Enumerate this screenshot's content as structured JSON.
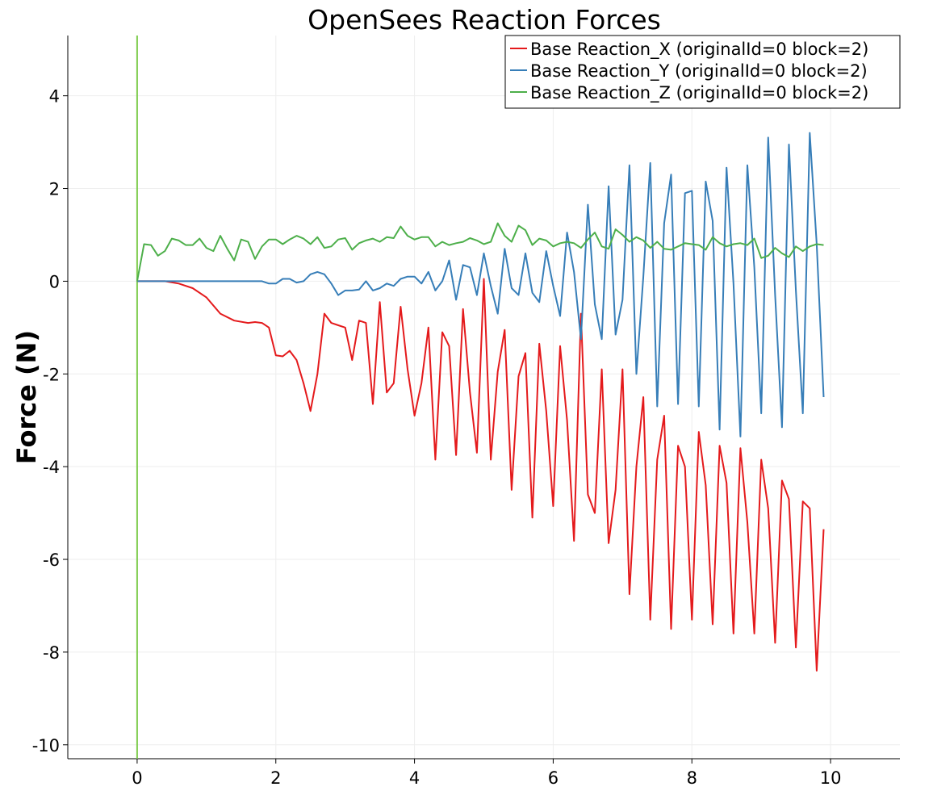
{
  "chart_data": {
    "type": "line",
    "title": "OpenSees Reaction Forces",
    "xlabel": "",
    "ylabel": "Force (N)",
    "xlim": [
      -1,
      11
    ],
    "ylim": [
      -10.3,
      5.3
    ],
    "xticks": [
      0,
      2,
      4,
      6,
      8,
      10
    ],
    "yticks": [
      -10,
      -8,
      -6,
      -4,
      -2,
      0,
      2,
      4
    ],
    "xtick_labels": [
      "0",
      "2",
      "4",
      "6",
      "8",
      "10"
    ],
    "ytick_labels": [
      "-10",
      "-8",
      "-6",
      "-4",
      "-2",
      "0",
      "2",
      "4"
    ],
    "grid": true,
    "legend_position": "top-right",
    "vertical_marker": {
      "x": 0,
      "color": "#7fcd4f"
    },
    "series": [
      {
        "name": "Base Reaction_X (originalId=0 block=2)",
        "color": "#e41a1c",
        "x": [
          0,
          0.2,
          0.4,
          0.6,
          0.8,
          1.0,
          1.2,
          1.4,
          1.6,
          1.7,
          1.8,
          1.9,
          2.0,
          2.1,
          2.2,
          2.3,
          2.4,
          2.5,
          2.6,
          2.7,
          2.8,
          2.9,
          3.0,
          3.1,
          3.2,
          3.3,
          3.4,
          3.5,
          3.6,
          3.7,
          3.8,
          3.9,
          4.0,
          4.1,
          4.2,
          4.3,
          4.4,
          4.5,
          4.6,
          4.7,
          4.8,
          4.9,
          5.0,
          5.1,
          5.2,
          5.3,
          5.4,
          5.5,
          5.6,
          5.7,
          5.8,
          5.9,
          6.0,
          6.1,
          6.2,
          6.3,
          6.4,
          6.5,
          6.6,
          6.7,
          6.8,
          6.9,
          7.0,
          7.1,
          7.2,
          7.3,
          7.4,
          7.5,
          7.6,
          7.7,
          7.8,
          7.9,
          8.0,
          8.1,
          8.2,
          8.3,
          8.4,
          8.5,
          8.6,
          8.7,
          8.8,
          8.9,
          9.0,
          9.1,
          9.2,
          9.3,
          9.4,
          9.5,
          9.6,
          9.7,
          9.8,
          9.9
        ],
        "y": [
          0,
          0,
          0,
          -0.05,
          -0.15,
          -0.35,
          -0.7,
          -0.85,
          -0.9,
          -0.88,
          -0.9,
          -1.0,
          -1.6,
          -1.62,
          -1.5,
          -1.7,
          -2.2,
          -2.8,
          -2.0,
          -0.7,
          -0.9,
          -0.95,
          -1.0,
          -1.7,
          -0.85,
          -0.9,
          -2.65,
          -0.45,
          -2.4,
          -2.2,
          -0.55,
          -1.9,
          -2.9,
          -2.2,
          -1.0,
          -3.85,
          -1.1,
          -1.4,
          -3.75,
          -0.6,
          -2.4,
          -3.7,
          0.05,
          -3.85,
          -1.95,
          -1.05,
          -4.5,
          -2.05,
          -1.55,
          -5.1,
          -1.35,
          -2.8,
          -4.85,
          -1.4,
          -3.0,
          -5.6,
          -0.7,
          -4.6,
          -5.0,
          -1.9,
          -5.65,
          -4.5,
          -1.9,
          -6.75,
          -4.0,
          -2.5,
          -7.3,
          -3.85,
          -2.9,
          -7.5,
          -3.55,
          -4.0,
          -7.3,
          -3.25,
          -4.4,
          -7.4,
          -3.55,
          -4.35,
          -7.6,
          -3.6,
          -5.2,
          -7.6,
          -3.85,
          -4.9,
          -7.8,
          -4.3,
          -4.7,
          -7.9,
          -4.75,
          -4.9,
          -8.4,
          -5.35
        ]
      },
      {
        "name": "Base Reaction_Y (originalId=0 block=2)",
        "color": "#377eb8",
        "x": [
          0,
          0.2,
          0.4,
          0.6,
          0.8,
          1.0,
          1.2,
          1.4,
          1.6,
          1.8,
          1.9,
          2.0,
          2.1,
          2.2,
          2.3,
          2.4,
          2.5,
          2.6,
          2.7,
          2.8,
          2.9,
          3.0,
          3.1,
          3.2,
          3.3,
          3.4,
          3.5,
          3.6,
          3.7,
          3.8,
          3.9,
          4.0,
          4.1,
          4.2,
          4.3,
          4.4,
          4.5,
          4.6,
          4.7,
          4.8,
          4.9,
          5.0,
          5.1,
          5.2,
          5.3,
          5.4,
          5.5,
          5.6,
          5.7,
          5.8,
          5.9,
          6.0,
          6.1,
          6.2,
          6.3,
          6.4,
          6.5,
          6.6,
          6.7,
          6.8,
          6.9,
          7.0,
          7.1,
          7.2,
          7.3,
          7.4,
          7.5,
          7.6,
          7.7,
          7.8,
          7.9,
          8.0,
          8.1,
          8.2,
          8.3,
          8.4,
          8.5,
          8.6,
          8.7,
          8.8,
          8.9,
          9.0,
          9.1,
          9.2,
          9.3,
          9.4,
          9.5,
          9.6,
          9.7,
          9.8,
          9.9
        ],
        "y": [
          0,
          0,
          0,
          0,
          0,
          0,
          0,
          0,
          0,
          0,
          -0.05,
          -0.05,
          0.05,
          0.05,
          -0.03,
          0,
          0.15,
          0.2,
          0.15,
          -0.05,
          -0.3,
          -0.2,
          -0.2,
          -0.18,
          0,
          -0.2,
          -0.15,
          -0.05,
          -0.1,
          0.05,
          0.1,
          0.1,
          -0.05,
          0.2,
          -0.2,
          0,
          0.45,
          -0.4,
          0.35,
          0.3,
          -0.3,
          0.6,
          -0.1,
          -0.7,
          0.7,
          -0.15,
          -0.3,
          0.6,
          -0.25,
          -0.45,
          0.65,
          -0.1,
          -0.75,
          1.05,
          0.2,
          -1.25,
          1.65,
          -0.5,
          -1.25,
          2.05,
          -1.15,
          -0.4,
          2.5,
          -2.0,
          0.1,
          2.55,
          -2.7,
          1.25,
          2.3,
          -2.65,
          1.9,
          1.95,
          -2.7,
          2.15,
          1.3,
          -3.2,
          2.45,
          -0.05,
          -3.35,
          2.5,
          0.3,
          -2.85,
          3.1,
          -0.3,
          -3.15,
          2.95,
          -0.2,
          -2.85,
          3.2,
          0.8,
          -2.5
        ]
      },
      {
        "name": "Base Reaction_Z (originalId=0 block=2)",
        "color": "#4daf4a",
        "x": [
          0,
          0.1,
          0.2,
          0.3,
          0.4,
          0.5,
          0.6,
          0.7,
          0.8,
          0.9,
          1.0,
          1.1,
          1.2,
          1.3,
          1.4,
          1.5,
          1.6,
          1.7,
          1.8,
          1.9,
          2.0,
          2.1,
          2.2,
          2.3,
          2.4,
          2.5,
          2.6,
          2.7,
          2.8,
          2.9,
          3.0,
          3.1,
          3.2,
          3.3,
          3.4,
          3.5,
          3.6,
          3.7,
          3.8,
          3.9,
          4.0,
          4.1,
          4.2,
          4.3,
          4.4,
          4.5,
          4.6,
          4.7,
          4.8,
          4.9,
          5.0,
          5.1,
          5.2,
          5.3,
          5.4,
          5.5,
          5.6,
          5.7,
          5.8,
          5.9,
          6.0,
          6.1,
          6.2,
          6.3,
          6.4,
          6.5,
          6.6,
          6.7,
          6.8,
          6.9,
          7.0,
          7.1,
          7.2,
          7.3,
          7.4,
          7.5,
          7.6,
          7.7,
          7.8,
          7.9,
          8.0,
          8.1,
          8.2,
          8.3,
          8.4,
          8.5,
          8.6,
          8.7,
          8.8,
          8.9,
          9.0,
          9.1,
          9.2,
          9.3,
          9.4,
          9.5,
          9.6,
          9.7,
          9.8,
          9.9
        ],
        "y": [
          0,
          0.8,
          0.78,
          0.55,
          0.65,
          0.92,
          0.88,
          0.78,
          0.78,
          0.92,
          0.72,
          0.65,
          0.98,
          0.7,
          0.45,
          0.9,
          0.85,
          0.48,
          0.75,
          0.9,
          0.9,
          0.8,
          0.9,
          0.98,
          0.92,
          0.8,
          0.95,
          0.72,
          0.75,
          0.9,
          0.93,
          0.68,
          0.82,
          0.88,
          0.92,
          0.85,
          0.95,
          0.93,
          1.18,
          0.98,
          0.9,
          0.95,
          0.95,
          0.75,
          0.85,
          0.78,
          0.82,
          0.85,
          0.93,
          0.88,
          0.8,
          0.85,
          1.25,
          0.98,
          0.85,
          1.2,
          1.1,
          0.78,
          0.92,
          0.88,
          0.75,
          0.82,
          0.85,
          0.82,
          0.72,
          0.9,
          1.05,
          0.75,
          0.7,
          1.12,
          1.0,
          0.85,
          0.95,
          0.88,
          0.72,
          0.85,
          0.7,
          0.68,
          0.75,
          0.82,
          0.8,
          0.78,
          0.68,
          0.95,
          0.82,
          0.75,
          0.8,
          0.82,
          0.78,
          0.92,
          0.5,
          0.55,
          0.72,
          0.6,
          0.52,
          0.75,
          0.65,
          0.75,
          0.8,
          0.78
        ]
      }
    ]
  }
}
